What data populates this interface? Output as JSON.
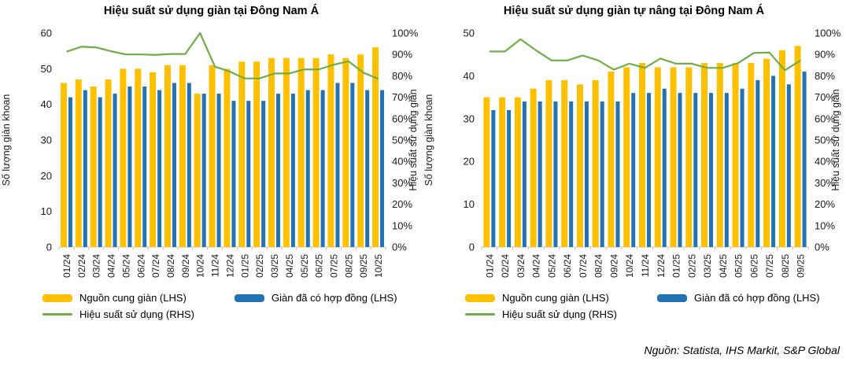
{
  "source_note": "Nguồn: Statista, IHS Markit, S&P Global",
  "chart_data": [
    {
      "type": "bar+line",
      "title": "Hiệu suất sử dụng giàn tại Đông Nam Á",
      "categories": [
        "01/24",
        "02/24",
        "03/24",
        "04/24",
        "05/24",
        "06/24",
        "07/24",
        "08/24",
        "09/24",
        "10/24",
        "11/24",
        "12/24",
        "01/25",
        "02/25",
        "03/25",
        "04/25",
        "05/25",
        "06/25",
        "07/25",
        "08/25",
        "09/25",
        "10/25"
      ],
      "left_axis": {
        "label": "Số lượng giàn khoan",
        "min": 0,
        "max": 60,
        "step": 10
      },
      "right_axis": {
        "label": "Hiệu suất sử dụng giàn",
        "min": 0,
        "max": 100,
        "step": 10,
        "suffix": "%"
      },
      "grid": false,
      "legend_position": "bottom",
      "series": [
        {
          "name": "Nguồn cung giàn (LHS)",
          "type": "bar",
          "axis": "left",
          "color": "#FFC000",
          "values": [
            46,
            47,
            45,
            47,
            50,
            50,
            49,
            51,
            51,
            43,
            51,
            50,
            52,
            52,
            53,
            53,
            53,
            53,
            54,
            53,
            54,
            56
          ]
        },
        {
          "name": "Giàn đã có hợp đồng (LHS)",
          "type": "bar",
          "axis": "left",
          "color": "#2272B4",
          "values": [
            42,
            44,
            42,
            43,
            45,
            45,
            44,
            46,
            46,
            43,
            43,
            41,
            41,
            41,
            43,
            43,
            44,
            44,
            46,
            46,
            44,
            44
          ]
        },
        {
          "name": "Hiệu suất sử dụng (RHS)",
          "type": "line",
          "axis": "right",
          "color": "#70AD47",
          "values": [
            91.3,
            93.6,
            93.3,
            91.5,
            90.0,
            90.0,
            89.8,
            90.2,
            90.2,
            100.0,
            84.3,
            82.0,
            78.8,
            78.8,
            81.1,
            81.1,
            83.0,
            83.0,
            85.2,
            86.8,
            81.5,
            78.6
          ]
        }
      ]
    },
    {
      "type": "bar+line",
      "title": "Hiệu suất sử dụng giàn tự nâng tại Đông Nam Á",
      "categories": [
        "01/24",
        "02/24",
        "03/24",
        "04/24",
        "05/24",
        "06/24",
        "07/24",
        "08/24",
        "09/24",
        "10/24",
        "11/24",
        "12/24",
        "01/25",
        "02/25",
        "03/25",
        "04/25",
        "05/25",
        "06/25",
        "07/25",
        "08/25",
        "09/25"
      ],
      "left_axis": {
        "label": "Số lượng giàn khoan",
        "min": 0,
        "max": 50,
        "step": 10
      },
      "right_axis": {
        "label": "Hiệu suất sử dụng giàn",
        "min": 0,
        "max": 100,
        "step": 10,
        "suffix": "%"
      },
      "grid": false,
      "legend_position": "bottom",
      "series": [
        {
          "name": "Nguồn cung giàn (LHS)",
          "type": "bar",
          "axis": "left",
          "color": "#FFC000",
          "values": [
            35,
            35,
            35,
            37,
            39,
            39,
            38,
            39,
            41,
            42,
            43,
            42,
            42,
            42,
            43,
            43,
            43,
            43,
            44,
            46,
            47
          ]
        },
        {
          "name": "Giàn đã có hợp đồng (LHS)",
          "type": "bar",
          "axis": "left",
          "color": "#2272B4",
          "values": [
            32,
            32,
            34,
            34,
            34,
            34,
            34,
            34,
            34,
            36,
            36,
            37,
            36,
            36,
            36,
            36,
            37,
            39,
            40,
            38,
            41
          ]
        },
        {
          "name": "Hiệu suất sử dụng (RHS)",
          "type": "line",
          "axis": "right",
          "color": "#70AD47",
          "values": [
            91.4,
            91.4,
            97.1,
            91.9,
            87.2,
            87.2,
            89.5,
            87.2,
            82.9,
            85.7,
            83.7,
            88.1,
            85.7,
            85.7,
            83.7,
            83.7,
            86.0,
            90.7,
            90.9,
            82.6,
            87.2
          ]
        }
      ]
    }
  ]
}
